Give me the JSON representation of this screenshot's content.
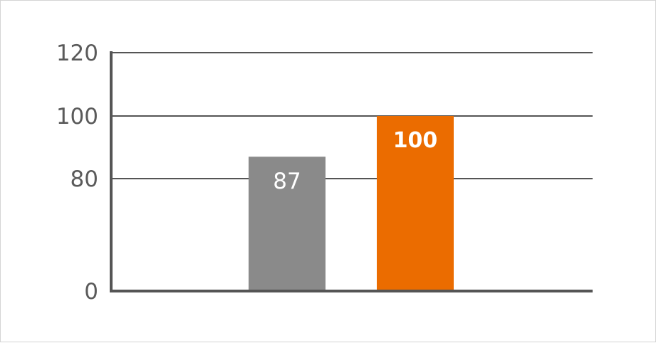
{
  "chart_data": {
    "type": "bar",
    "categories": [
      "",
      ""
    ],
    "values": [
      87,
      100
    ],
    "data_labels": [
      "87",
      "100"
    ],
    "bar_colors": [
      "#8a8a8a",
      "#eb6c00"
    ],
    "label_color": "#ffffff",
    "yticks": [
      0,
      80,
      100,
      120
    ],
    "ytick_labels": [
      "0",
      "80",
      "100",
      "120"
    ],
    "ylim": [
      0,
      120
    ],
    "y_axis_break": "between 0 and 80",
    "grid": true,
    "axis_color": "#555555",
    "title": "",
    "xlabel": "",
    "ylabel": ""
  }
}
